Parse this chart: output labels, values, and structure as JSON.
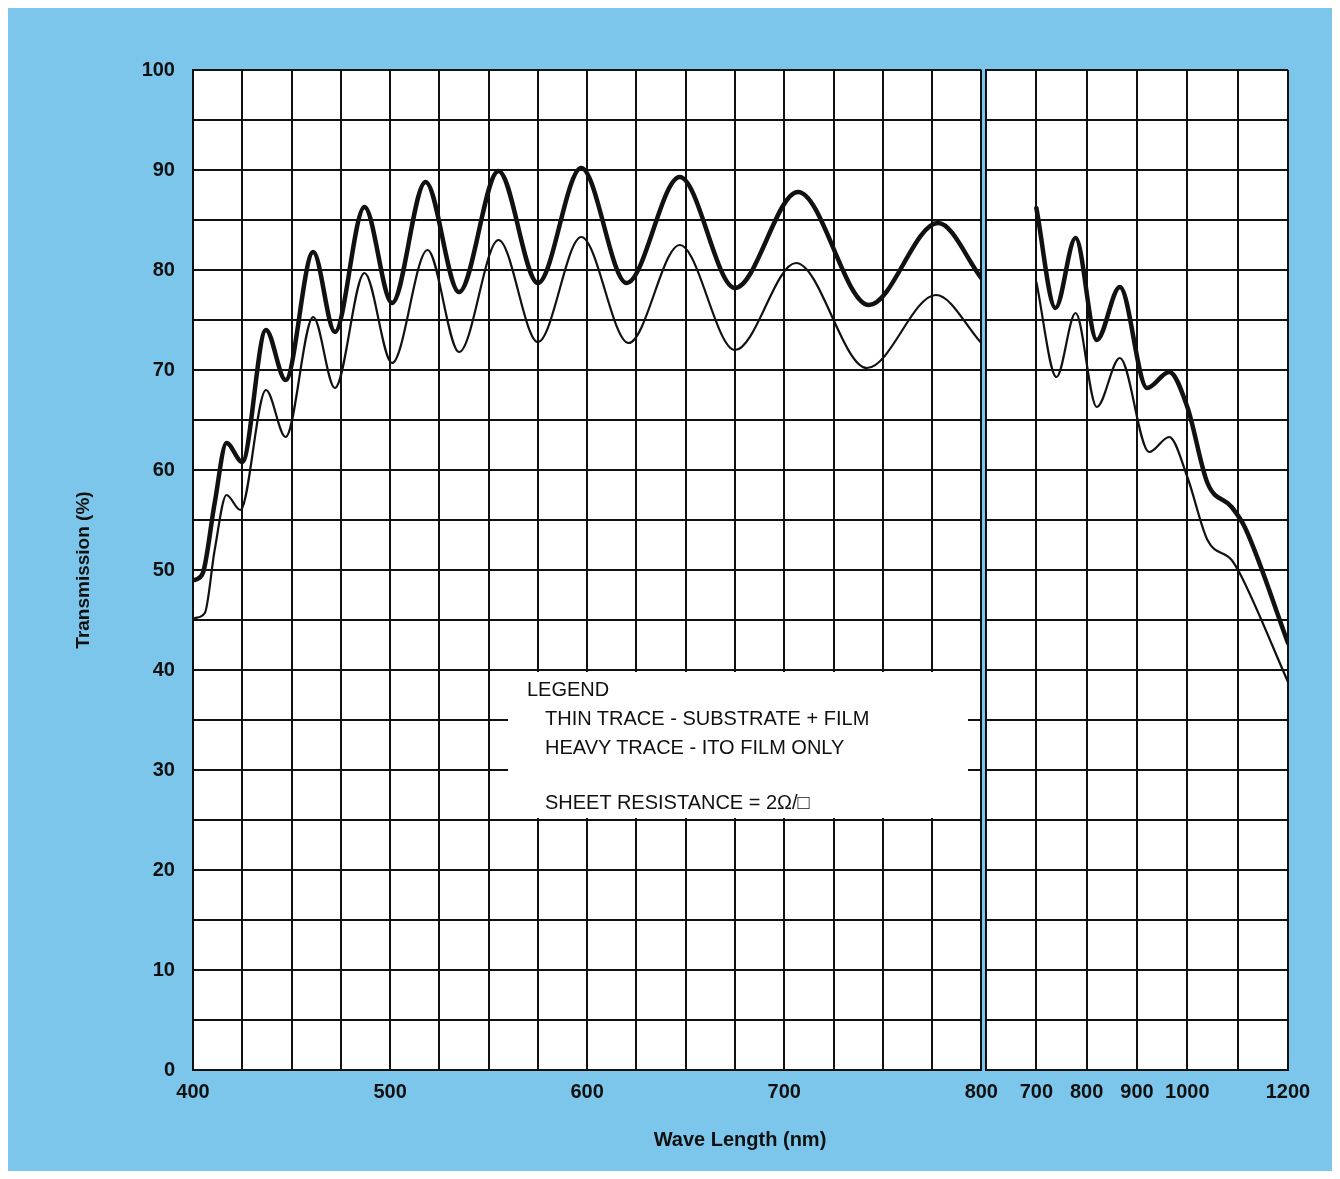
{
  "chart_data": [
    {
      "type": "line",
      "ylabel": "Transmission (%)",
      "xlabel": "Wave Length (nm)",
      "xlim": [
        400,
        800
      ],
      "ylim": [
        0,
        100
      ],
      "xticks": [
        400,
        {
          "value": 425,
          "label": null
        },
        {
          "value": 450,
          "label": null
        },
        {
          "value": 475,
          "label": null
        },
        500,
        {
          "value": 525,
          "label": null
        },
        {
          "value": 550,
          "label": null
        },
        {
          "value": 575,
          "label": null
        },
        600,
        {
          "value": 625,
          "label": null
        },
        {
          "value": 650,
          "label": null
        },
        {
          "value": 675,
          "label": null
        },
        700,
        {
          "value": 725,
          "label": null
        },
        {
          "value": 750,
          "label": null
        },
        {
          "value": 775,
          "label": null
        },
        800
      ],
      "yticks": [
        0,
        {
          "value": 5,
          "label": null
        },
        10,
        {
          "value": 15,
          "label": null
        },
        20,
        {
          "value": 25,
          "label": null
        },
        30,
        {
          "value": 35,
          "label": null
        },
        40,
        {
          "value": 45,
          "label": null
        },
        50,
        {
          "value": 55,
          "label": null
        },
        60,
        {
          "value": 65,
          "label": null
        },
        70,
        {
          "value": 75,
          "label": null
        },
        80,
        {
          "value": 85,
          "label": null
        },
        90,
        {
          "value": 95,
          "label": null
        },
        100
      ],
      "grid": true,
      "annotations": [
        "LEGEND",
        "THIN TRACE - SUBSTRATE + FILM",
        "HEAVY TRACE - ITO FILM ONLY",
        "SHEET RESISTANCE = 2Ω/□"
      ],
      "series": [
        {
          "color": "#111111",
          "x": [
            401,
            405,
            411,
            417,
            425,
            437,
            447,
            461,
            472,
            487,
            501,
            518,
            535,
            555,
            575,
            597,
            620,
            647,
            675,
            707,
            743,
            778,
            800
          ],
          "values": [
            49.0,
            49.7,
            56.7,
            62.7,
            60.8,
            74.0,
            69.0,
            81.8,
            73.8,
            86.3,
            76.7,
            88.8,
            77.8,
            89.9,
            78.7,
            90.2,
            78.7,
            89.3,
            78.2,
            87.8,
            76.5,
            84.7,
            79.2
          ]
        },
        {
          "color": "#111111",
          "x": [
            401,
            406,
            411,
            417,
            424,
            437,
            447,
            461,
            472,
            487,
            501,
            519,
            535,
            555,
            575,
            597,
            621,
            647,
            675,
            706,
            742,
            777,
            800
          ],
          "values": [
            45.2,
            45.7,
            52.0,
            57.5,
            56.0,
            68.0,
            63.3,
            75.3,
            68.2,
            79.7,
            70.7,
            82.0,
            71.8,
            83.0,
            72.8,
            83.3,
            72.7,
            82.5,
            72.0,
            80.7,
            70.2,
            77.5,
            72.7
          ]
        }
      ]
    },
    {
      "type": "line",
      "xlim": [
        600,
        1200
      ],
      "ylim": [
        0,
        100
      ],
      "tick_labels": "x",
      "xticks": [
        {
          "value": 600,
          "label": null
        },
        700,
        800,
        900,
        1000,
        {
          "value": 1100,
          "label": null
        },
        1200
      ],
      "yticks": [
        0,
        5,
        10,
        15,
        20,
        25,
        30,
        35,
        40,
        45,
        50,
        55,
        60,
        65,
        70,
        75,
        80,
        85,
        90,
        95,
        100
      ],
      "grid": true,
      "series": [
        {
          "color": "#111111",
          "x": [
            700,
            738,
            778,
            820,
            866,
            920,
            964,
            1000,
            1040,
            1088,
            1114,
            1200
          ],
          "values": [
            86.2,
            76.2,
            83.2,
            73.0,
            78.3,
            68.2,
            69.8,
            66.3,
            58.7,
            56.3,
            54.3,
            42.7
          ]
        },
        {
          "color": "#111111",
          "x": [
            700,
            740,
            778,
            820,
            866,
            924,
            964,
            1000,
            1040,
            1088,
            1108,
            1200
          ],
          "values": [
            78.8,
            69.3,
            75.7,
            66.3,
            71.2,
            61.8,
            63.3,
            59.3,
            53.0,
            51.0,
            49.3,
            38.8
          ]
        }
      ]
    }
  ]
}
